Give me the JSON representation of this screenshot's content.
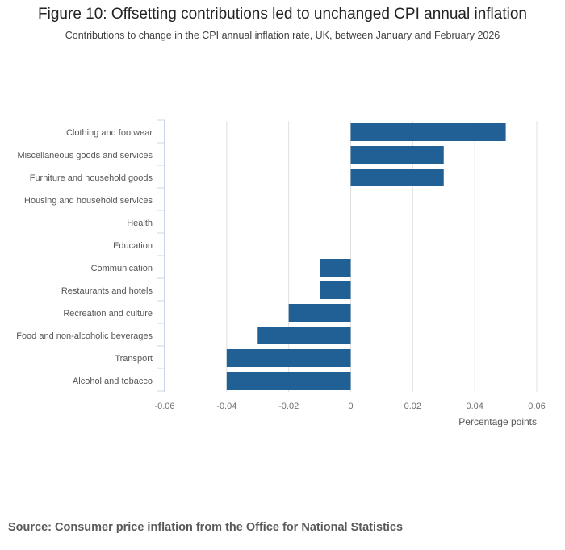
{
  "title": "Figure 10: Offsetting contributions led to unchanged CPI annual inflation",
  "subtitle": "Contributions to change in the CPI annual inflation rate, UK, between January and February 2026",
  "source": "Source: Consumer price inflation from the Office for National Statistics",
  "colors": {
    "bar": "#206095",
    "grid": "#e0e0e0",
    "axis": "#ccd6eb"
  },
  "chart_data": {
    "type": "bar",
    "orientation": "horizontal",
    "title": "Figure 10: Offsetting contributions led to unchanged CPI annual inflation",
    "xlabel": "Percentage points",
    "ylabel": "",
    "xlim": [
      -0.06,
      0.06
    ],
    "xticks": [
      -0.06,
      -0.04,
      -0.02,
      0,
      0.02,
      0.04,
      0.06
    ],
    "xtick_labels": [
      "-0.06",
      "-0.04",
      "-0.02",
      "0",
      "0.02",
      "0.04",
      "0.06"
    ],
    "grid": true,
    "categories": [
      "Clothing and footwear",
      "Miscellaneous goods and services",
      "Furniture and household goods",
      "Housing and household services",
      "Health",
      "Education",
      "Communication",
      "Restaurants and hotels",
      "Recreation and culture",
      "Food and non-alcoholic beverages",
      "Transport",
      "Alcohol and tobacco"
    ],
    "values": [
      0.05,
      0.03,
      0.03,
      0,
      0,
      0,
      -0.01,
      -0.01,
      -0.02,
      -0.03,
      -0.04,
      -0.04
    ]
  }
}
